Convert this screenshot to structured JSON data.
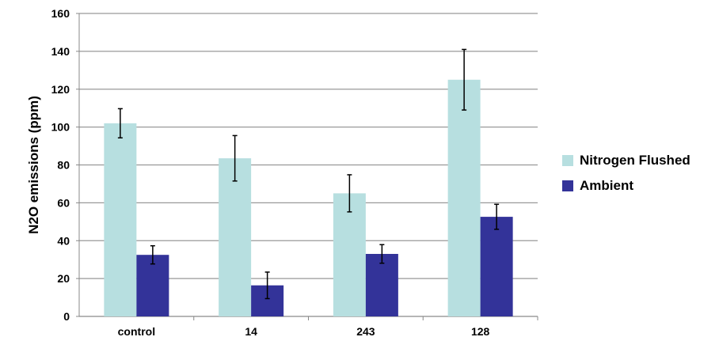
{
  "chart_data": {
    "type": "bar",
    "title": "",
    "xlabel": "",
    "ylabel": "N2O emissions (ppm)",
    "ylim": [
      0,
      160
    ],
    "yticks": [
      0,
      20,
      40,
      60,
      80,
      100,
      120,
      140,
      160
    ],
    "grid": true,
    "legend_position": "right",
    "categories": [
      "control",
      "14",
      "243",
      "128"
    ],
    "series": [
      {
        "name": "Nitrogen Flushed",
        "color": "#b7dfe0",
        "values": [
          102,
          83.5,
          65,
          125
        ],
        "errors": [
          7.7,
          12,
          9.8,
          16
        ]
      },
      {
        "name": "Ambient",
        "color": "#333399",
        "values": [
          32.5,
          16.4,
          33,
          52.6
        ],
        "errors": [
          4.8,
          7,
          4.9,
          6.6
        ]
      }
    ]
  }
}
